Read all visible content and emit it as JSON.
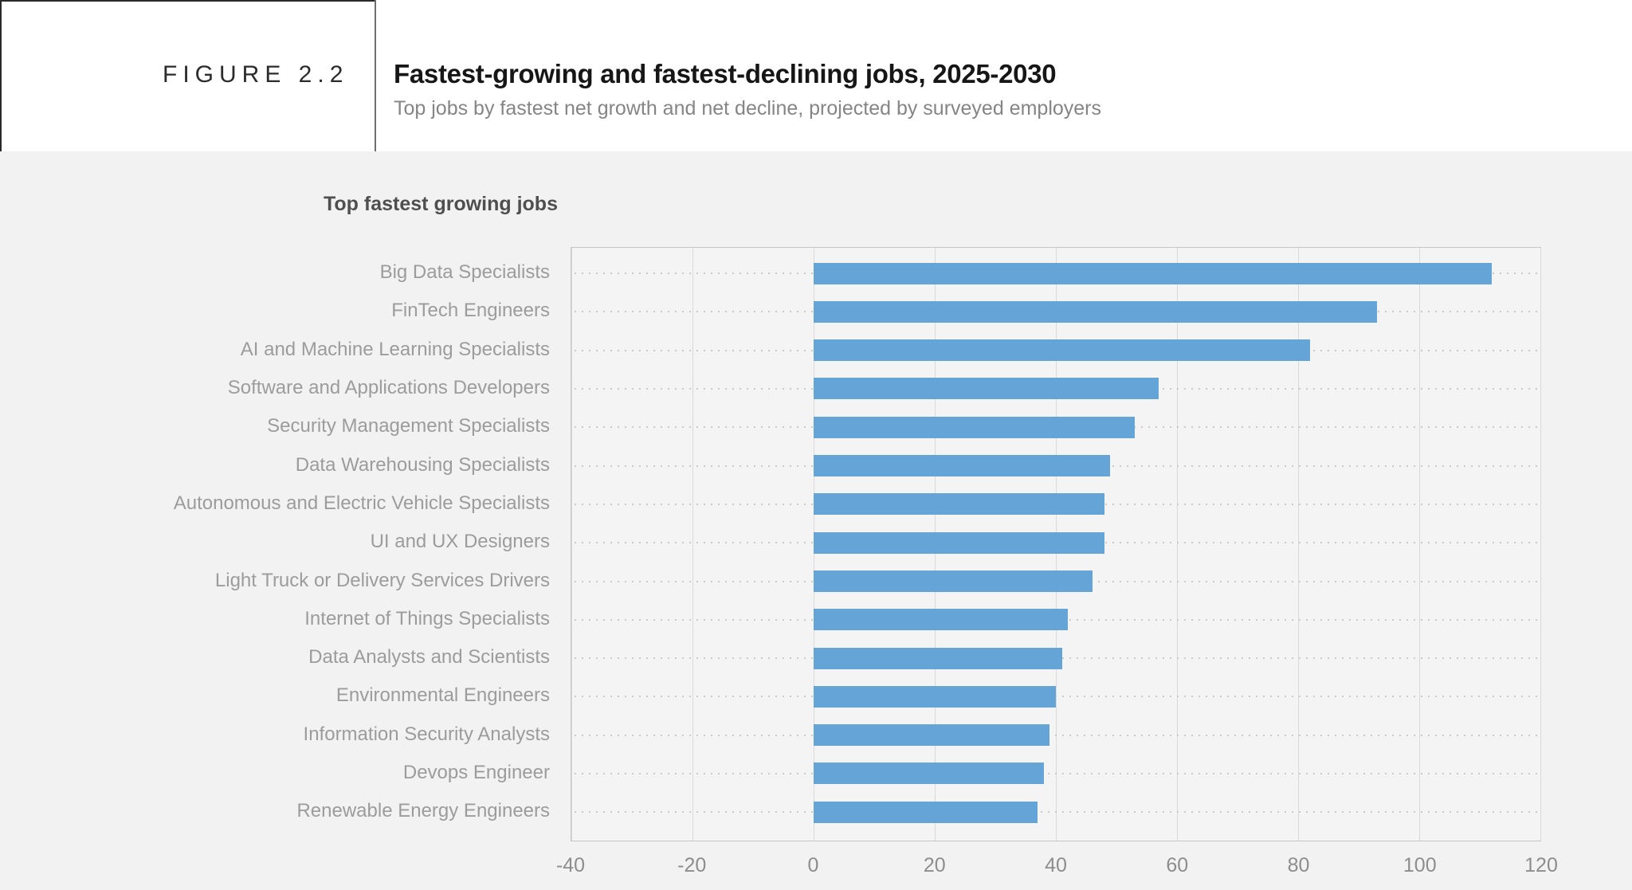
{
  "figure": {
    "label": "FIGURE 2.2",
    "title": "Fastest-growing and fastest-declining jobs, 2025-2030",
    "subtitle": "Top jobs by fastest net growth and net decline, projected by surveyed employers"
  },
  "section": {
    "title": "Top fastest growing jobs"
  },
  "chart_data": {
    "type": "bar",
    "orientation": "horizontal",
    "title": "Top fastest growing jobs",
    "categories": [
      "Big Data Specialists",
      "FinTech Engineers",
      "AI and Machine Learning Specialists",
      "Software and Applications Developers",
      "Security Management Specialists",
      "Data Warehousing Specialists",
      "Autonomous and Electric Vehicle Specialists",
      "UI and UX Designers",
      "Light Truck or Delivery Services Drivers",
      "Internet of Things Specialists",
      "Data Analysts and Scientists",
      "Environmental Engineers",
      "Information Security Analysts",
      "Devops Engineer",
      "Renewable Energy Engineers"
    ],
    "values": [
      112,
      93,
      82,
      57,
      53,
      49,
      48,
      48,
      46,
      42,
      41,
      40,
      39,
      38,
      37
    ],
    "xlim": [
      -40,
      120
    ],
    "xticks": [
      -40,
      -20,
      0,
      20,
      40,
      60,
      80,
      100,
      120
    ],
    "grid": "vertical",
    "legend": "none",
    "bar_color": "#64a4d6"
  }
}
